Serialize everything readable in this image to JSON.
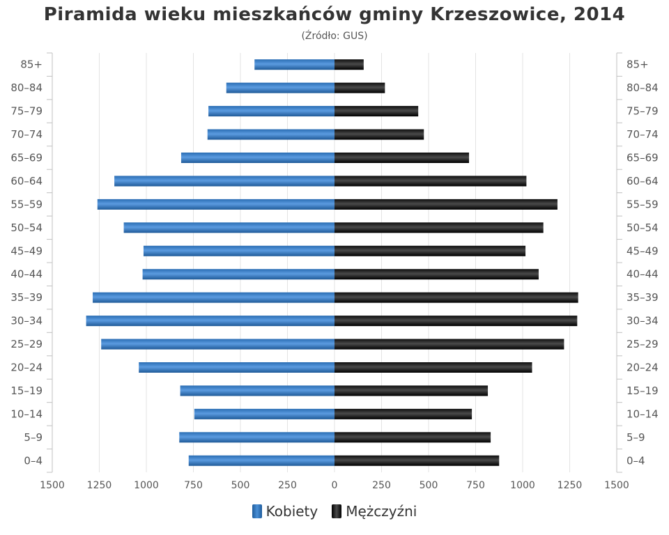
{
  "title": "Piramida wieku mieszkańców gminy Krzeszowice, 2014",
  "subtitle": "(Źródło: GUS)",
  "colors": {
    "women": "#3f7fc4",
    "men": "#222222",
    "grid": "#e3e3e3",
    "text": "#555555"
  },
  "legend": {
    "women": "Kobiety",
    "men": "Mężczyźni"
  },
  "chart_data": {
    "type": "bar",
    "orientation": "horizontal-pyramid",
    "title": "Piramida wieku mieszkańców gminy Krzeszowice, 2014",
    "subtitle": "(Źródło: GUS)",
    "categories": [
      "85+",
      "80–84",
      "75–79",
      "70–74",
      "65–69",
      "60–64",
      "55–59",
      "50–54",
      "45–49",
      "40–44",
      "35–39",
      "30–34",
      "25–29",
      "20–24",
      "15–19",
      "10–14",
      "5–9",
      "0–4"
    ],
    "series": [
      {
        "name": "Kobiety",
        "side": "left",
        "values": [
          425,
          575,
          670,
          675,
          815,
          1170,
          1260,
          1120,
          1015,
          1020,
          1285,
          1320,
          1240,
          1040,
          820,
          745,
          825,
          775
        ]
      },
      {
        "name": "Mężczyźni",
        "side": "right",
        "values": [
          155,
          268,
          445,
          475,
          715,
          1020,
          1185,
          1110,
          1015,
          1085,
          1295,
          1290,
          1220,
          1050,
          815,
          730,
          830,
          875
        ]
      }
    ],
    "xlim": [
      -1500,
      1500
    ],
    "xticks": [
      "1500",
      "1250",
      "1000",
      "750",
      "500",
      "250",
      "0",
      "250",
      "500",
      "750",
      "1000",
      "1250",
      "1500"
    ],
    "grid": true,
    "legend_position": "bottom-center"
  }
}
